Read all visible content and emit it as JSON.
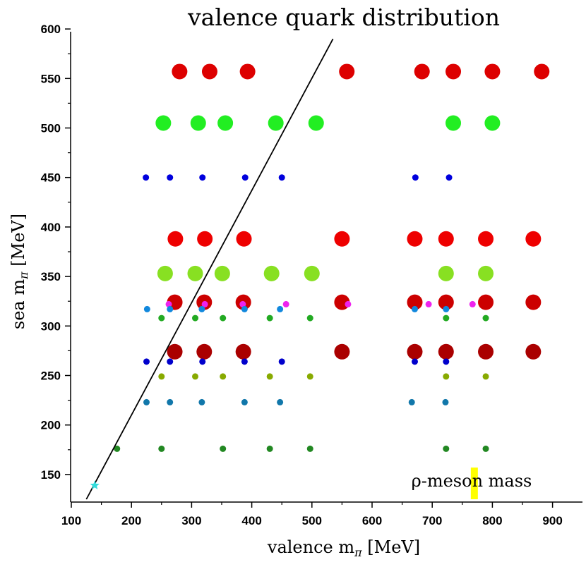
{
  "chart_data": {
    "type": "scatter",
    "title": "valence quark distribution",
    "xlabel": "valence m",
    "xlabel_sub": "π",
    "xlabel_unit": " [MeV]",
    "ylabel": "sea m",
    "ylabel_sub": "π",
    "ylabel_unit": " [MeV]",
    "xlim": [
      100,
      950
    ],
    "ylim": [
      125,
      600
    ],
    "xticks": [
      100,
      200,
      300,
      400,
      500,
      600,
      700,
      800,
      900
    ],
    "yticks": [
      150,
      200,
      250,
      300,
      350,
      400,
      450,
      500,
      550,
      600
    ],
    "annotation": {
      "text": "ρ-meson mass",
      "x": 770,
      "bar_range": [
        125,
        157
      ],
      "color": "#ffff00"
    },
    "diagonal_line": {
      "x": [
        125,
        535
      ],
      "y": [
        125,
        590
      ],
      "color": "#000000"
    },
    "physical_point": {
      "x": 139,
      "y": 139,
      "color": "#33dddd",
      "symbol": "star"
    },
    "series": [
      {
        "name": "sea 557",
        "sea": 557,
        "color": "#dd0000",
        "size": "large",
        "valence": [
          280,
          330,
          393,
          558,
          683,
          735,
          800,
          882
        ]
      },
      {
        "name": "sea 505",
        "sea": 505,
        "color": "#22ee22",
        "size": "large",
        "valence": [
          253,
          311,
          356,
          440,
          507,
          735,
          800
        ]
      },
      {
        "name": "sea 450",
        "sea": 450,
        "color": "#0000dd",
        "size": "small",
        "valence": [
          224,
          264,
          318,
          389,
          450,
          672,
          728
        ]
      },
      {
        "name": "sea 388",
        "sea": 388,
        "color": "#ee0000",
        "size": "large",
        "valence": [
          273,
          322,
          387,
          550,
          671,
          723,
          789,
          868
        ]
      },
      {
        "name": "sea 353",
        "sea": 353,
        "color": "#88e022",
        "size": "large",
        "valence": [
          256,
          306,
          351,
          433,
          500,
          723,
          789
        ]
      },
      {
        "name": "sea 324",
        "sea": 324,
        "color": "#cc0000",
        "size": "large",
        "valence": [
          272,
          321,
          386,
          550,
          671,
          723,
          789,
          868
        ]
      },
      {
        "name": "sea 322 (pion)",
        "sea": 322,
        "color": "#ee22ee",
        "size": "small",
        "valence": [
          262,
          322,
          385,
          457,
          560,
          694,
          767
        ]
      },
      {
        "name": "sea 317",
        "sea": 317,
        "color": "#1188dd",
        "size": "small",
        "valence": [
          226,
          264,
          317,
          388,
          447,
          671,
          723
        ]
      },
      {
        "name": "sea 308",
        "sea": 308,
        "color": "#22aa22",
        "size": "small",
        "valence": [
          250,
          306,
          352,
          430,
          497,
          723,
          789
        ]
      },
      {
        "name": "sea 274",
        "sea": 274,
        "color": "#aa0000",
        "size": "large",
        "valence": [
          272,
          321,
          386,
          550,
          671,
          723,
          789,
          868
        ]
      },
      {
        "name": "sea 264",
        "sea": 264,
        "color": "#0000cc",
        "size": "small",
        "valence": [
          225,
          264,
          318,
          388,
          450,
          671,
          723
        ]
      },
      {
        "name": "sea 249",
        "sea": 249,
        "color": "#88aa00",
        "size": "small",
        "valence": [
          250,
          306,
          352,
          430,
          497,
          723,
          789
        ]
      },
      {
        "name": "sea 223",
        "sea": 223,
        "color": "#1177aa",
        "size": "small",
        "valence": [
          225,
          264,
          317,
          388,
          447,
          666,
          722
        ]
      },
      {
        "name": "sea 176",
        "sea": 176,
        "color": "#228822",
        "size": "small",
        "valence": [
          176,
          250,
          352,
          430,
          497,
          723,
          789
        ]
      }
    ]
  }
}
